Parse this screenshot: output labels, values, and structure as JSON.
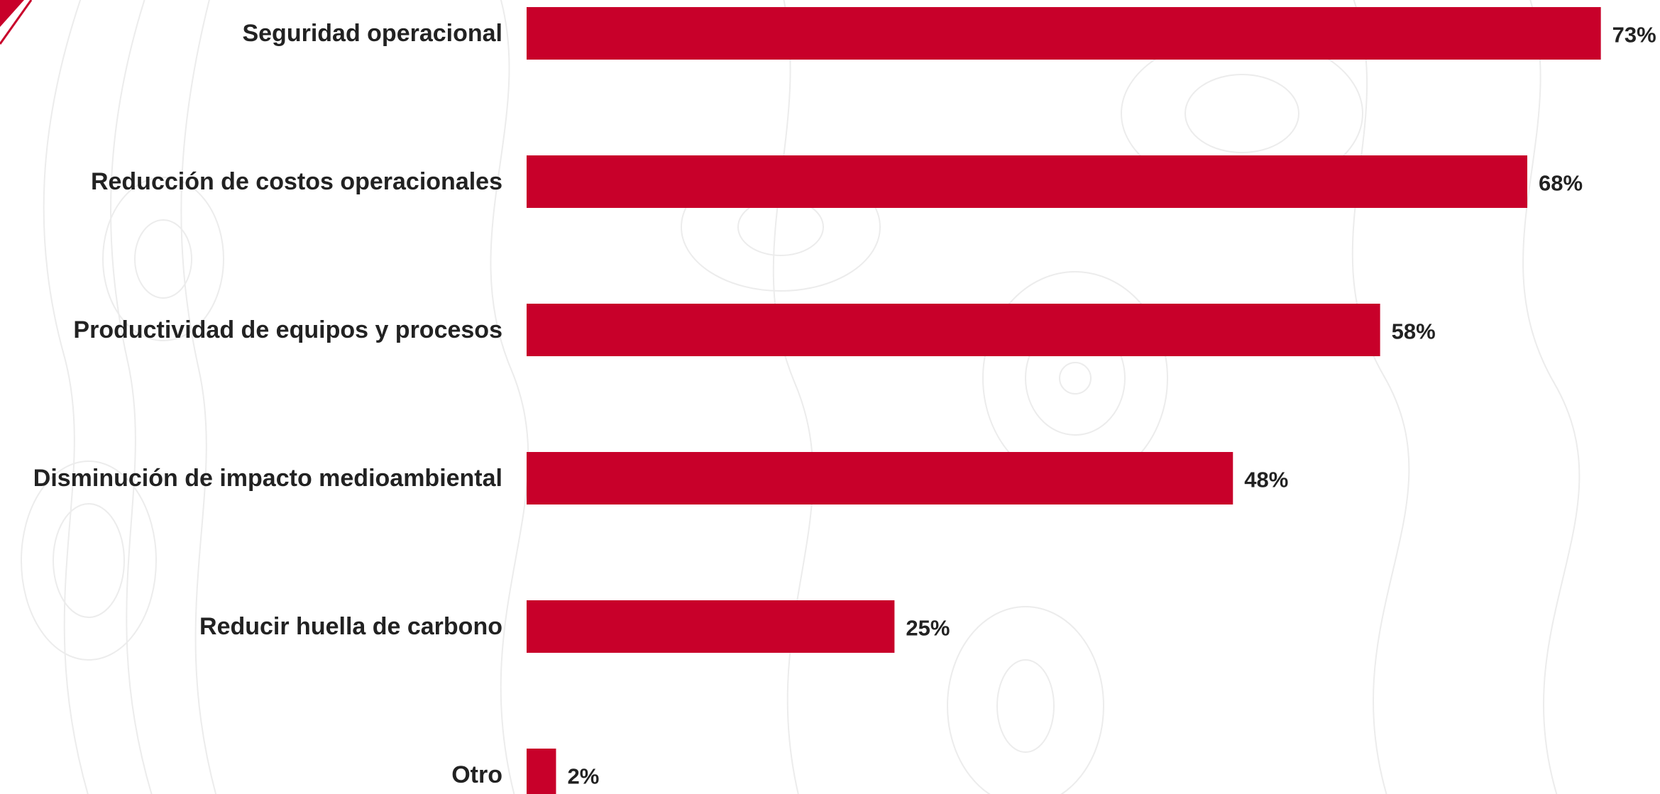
{
  "colors": {
    "bar": "#c8002a",
    "text": "#222222",
    "background": "#ffffff",
    "background_pattern": "#ececec",
    "corner_accent": "#c8002a"
  },
  "chart_data": {
    "type": "bar",
    "orientation": "horizontal",
    "title": "",
    "xlabel": "",
    "ylabel": "",
    "xlim": [
      0,
      73
    ],
    "grid": false,
    "legend": "none",
    "categories": [
      "Seguridad operacional",
      "Reducción de costos operacionales",
      "Productividad de equipos y procesos",
      "Disminución de impacto medioambiental",
      "Reducir huella de carbono",
      "Otro"
    ],
    "values": [
      73,
      68,
      58,
      48,
      25,
      2
    ],
    "value_labels": [
      "73%",
      "68%",
      "58%",
      "48%",
      "25%",
      "2%"
    ]
  }
}
